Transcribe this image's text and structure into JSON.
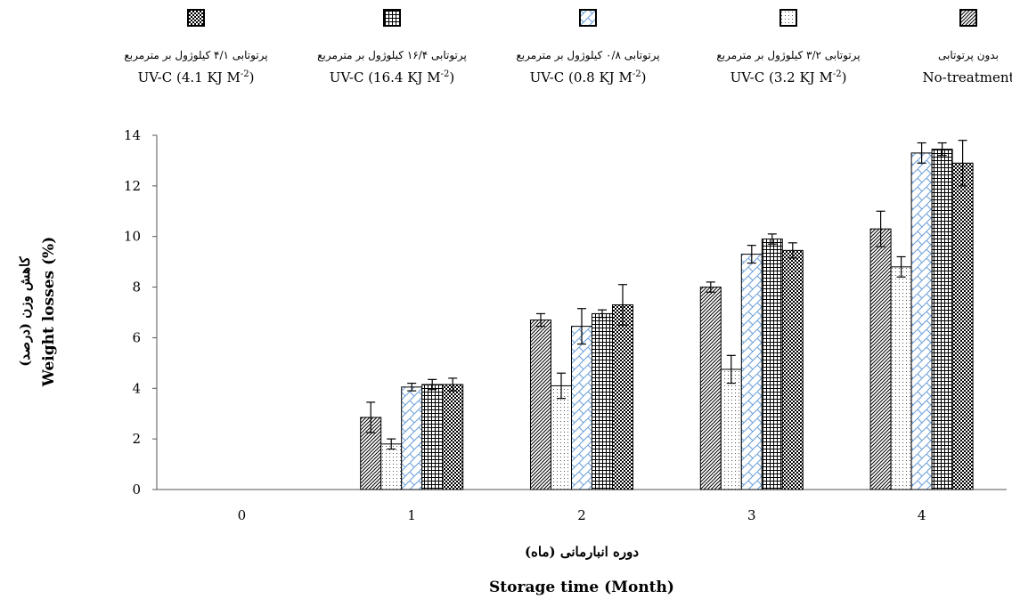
{
  "chart_data": {
    "type": "bar",
    "xlabel_fa": "دوره انبارمانی (ماه)",
    "xlabel": "Storage time (Month)",
    "ylabel_fa": "کاهش وزن (درصد)",
    "ylabel": "Weight losses (%)",
    "ylim": [
      0,
      14
    ],
    "yticks": [
      "0",
      "2",
      "4",
      "6",
      "8",
      "10",
      "12",
      "14"
    ],
    "categories": [
      "0",
      "1",
      "2",
      "3",
      "4"
    ],
    "grid": false,
    "legend_position": "top",
    "series": [
      {
        "name_fa": "بدون پرتوتابی",
        "name": "No-treatment",
        "pattern": "diagonal-dense",
        "values": [
          null,
          2.85,
          6.7,
          8.0,
          10.3
        ],
        "errors": [
          null,
          0.6,
          0.25,
          0.2,
          0.7
        ]
      },
      {
        "name_fa": "پرتوتابی ۳/۲ کیلوژول بر مترمربع",
        "name": "UV-C (3.2 KJ M-2)",
        "pattern": "dots",
        "values": [
          null,
          1.8,
          4.1,
          4.75,
          8.8
        ],
        "errors": [
          null,
          0.2,
          0.5,
          0.55,
          0.4
        ]
      },
      {
        "name_fa": "پرتوتابی ۰/۸ کیلوژول بر مترمربع",
        "name": "UV-C (0.8 KJ M-2)",
        "pattern": "blue-zigzag",
        "values": [
          null,
          4.05,
          6.45,
          9.3,
          13.3
        ],
        "errors": [
          null,
          0.15,
          0.7,
          0.35,
          0.4
        ]
      },
      {
        "name_fa": "پرتوتابی ۱۶/۴ کیلوژول بر مترمربع",
        "name": "UV-C (16.4 KJ M-2)",
        "pattern": "grid",
        "values": [
          null,
          4.15,
          6.95,
          9.9,
          13.45
        ],
        "errors": [
          null,
          0.2,
          0.15,
          0.2,
          0.25
        ]
      },
      {
        "name_fa": "پرتوتابی ۴/۱ کیلوژول بر مترمربع",
        "name": "UV-C (4.1 KJ M-2)",
        "pattern": "checker",
        "values": [
          null,
          4.15,
          7.3,
          9.45,
          12.9
        ],
        "errors": [
          null,
          0.25,
          0.8,
          0.3,
          0.9
        ]
      }
    ]
  },
  "legend": [
    {
      "fa": "بدون پرتوتابی",
      "en": "No-treatment",
      "sup": ""
    },
    {
      "fa": "پرتوتابی ۳/۲ کیلوژول بر مترمربع",
      "en": "UV-C (3.2 KJ M",
      "sup": "-2"
    },
    {
      "fa": "پرتوتابی ۰/۸ کیلوژول بر مترمربع",
      "en": "UV-C (0.8 KJ M",
      "sup": "-2"
    },
    {
      "fa": "پرتوتابی ۱۶/۴ کیلوژول بر مترمربع",
      "en": "UV-C (16.4 KJ M",
      "sup": "-2"
    },
    {
      "fa": "پرتوتابی ۴/۱ کیلوژول بر مترمربع",
      "en": "UV-C (4.1 KJ M",
      "sup": "-2"
    }
  ]
}
